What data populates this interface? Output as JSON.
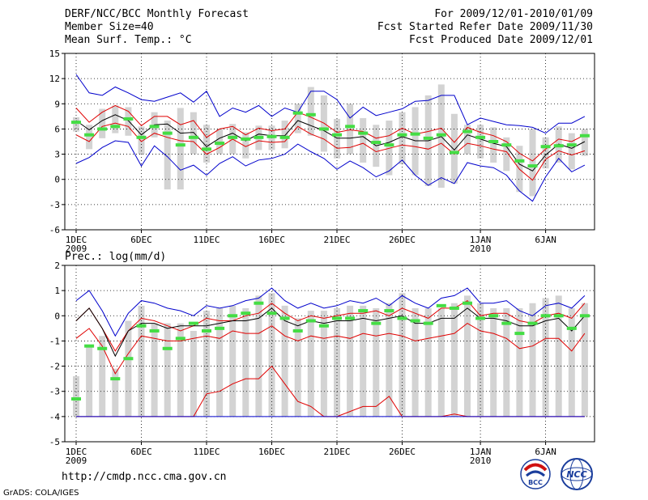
{
  "header": {
    "title": "DERF/NCC/BCC Monthly Forecast",
    "member_size": "Member Size=40",
    "variable": "Mean Surf. Temp.: °C",
    "forecast_period": "For 2009/12/01-2010/01/09",
    "start_refer_date": "Fcst Started Refer Date 2009/11/30",
    "produced_date": "Fcst Produced Date 2009/12/01"
  },
  "panel2_label": "Prec.: log(mm/d)",
  "footer": {
    "url": "http://cmdp.ncc.cma.gov.cn",
    "credit": "GrADS: COLA/IGES"
  },
  "logos": {
    "left": "BCC",
    "right": "NCC"
  },
  "colors": {
    "max_line": "#0000cc",
    "min_line": "#0000cc",
    "mean_line": "#000000",
    "spread_line": "#e00000",
    "observed_bar": "#44dd44",
    "box": "#d3d3d3"
  },
  "chart_data": [
    {
      "type": "line",
      "name": "temperature",
      "title": "Mean Surf. Temp.: °C",
      "xlabel": "",
      "ylabel": "°C",
      "ylim": [
        -6,
        15
      ],
      "yticks": [
        -6,
        -3,
        0,
        3,
        6,
        9,
        12,
        15
      ],
      "xtick_labels": [
        {
          "day": 1,
          "label": "1DEC",
          "sub": "2009"
        },
        {
          "day": 6,
          "label": "6DEC"
        },
        {
          "day": 11,
          "label": "11DEC"
        },
        {
          "day": 16,
          "label": "16DEC"
        },
        {
          "day": 21,
          "label": "21DEC"
        },
        {
          "day": 26,
          "label": "26DEC"
        },
        {
          "day": 32,
          "label": "1JAN",
          "sub": "2010"
        },
        {
          "day": 37,
          "label": "6JAN"
        }
      ],
      "grid": true,
      "days": [
        1,
        2,
        3,
        4,
        5,
        6,
        7,
        8,
        9,
        10,
        11,
        12,
        13,
        14,
        15,
        16,
        17,
        18,
        19,
        20,
        21,
        22,
        23,
        24,
        25,
        26,
        27,
        28,
        29,
        30,
        31,
        32,
        33,
        34,
        35,
        36,
        37,
        38,
        39,
        40
      ],
      "series": [
        {
          "name": "ensemble max",
          "color": "#0000cc",
          "values": [
            12.5,
            10.3,
            10,
            11,
            10.3,
            9.5,
            9.3,
            9.8,
            10.3,
            9.2,
            10.5,
            7.5,
            8.5,
            8,
            8.8,
            7.5,
            8.5,
            8,
            10.5,
            10.5,
            9.5,
            7.3,
            8.6,
            7.6,
            8,
            8.4,
            9.3,
            9.4,
            10,
            10,
            6.5,
            7.3,
            6.9,
            6.5,
            6.4,
            6.2,
            5.5,
            6.7,
            6.7,
            7.5
          ]
        },
        {
          "name": "upper spread",
          "color": "#e00000",
          "values": [
            8.5,
            6.8,
            8,
            8.8,
            8.1,
            6.4,
            7.5,
            7.5,
            6.5,
            7,
            5,
            6,
            6.3,
            5.3,
            6.1,
            5.8,
            6,
            8,
            7.4,
            6.7,
            5.6,
            5.9,
            5.7,
            4.9,
            5.2,
            6.1,
            5.4,
            5.7,
            6.1,
            4.4,
            6.2,
            5.6,
            5.2,
            4.5,
            3.1,
            2.2,
            3.6,
            4.8,
            4.5,
            5.3
          ]
        },
        {
          "name": "ensemble mean",
          "color": "#000000",
          "values": [
            7,
            5.9,
            7,
            7.7,
            7,
            5.3,
            6.5,
            6.6,
            5.5,
            5.6,
            3.9,
            4.9,
            5.5,
            4.6,
            5.4,
            5.2,
            5.2,
            7,
            6.4,
            5.8,
            4.9,
            4.9,
            5.1,
            4,
            4.4,
            5.1,
            4.6,
            4.6,
            5.1,
            3.5,
            5.3,
            4.8,
            4.3,
            3.9,
            1.8,
            1,
            2.9,
            4.2,
            3.7,
            4.5
          ]
        },
        {
          "name": "lower spread",
          "color": "#e00000",
          "values": [
            5.3,
            4.5,
            6.3,
            6.7,
            6.3,
            4.5,
            5.5,
            5,
            4.6,
            4.5,
            3,
            3.8,
            4.8,
            3.9,
            4.6,
            4.4,
            4.5,
            6.3,
            5.4,
            4.8,
            3.7,
            3.8,
            4.3,
            3.3,
            3.7,
            4.1,
            3.9,
            3.6,
            4.3,
            3,
            4.3,
            4,
            3.6,
            3.3,
            1.2,
            -0.1,
            2.4,
            3.4,
            2.9,
            3.4
          ]
        },
        {
          "name": "ensemble min",
          "color": "#0000cc",
          "values": [
            1.9,
            2.6,
            3.8,
            4.6,
            4.4,
            1.6,
            4,
            2.7,
            1.1,
            1.7,
            0.5,
            1.9,
            2.7,
            1.6,
            2.3,
            2.5,
            3,
            4.2,
            3.3,
            2.5,
            1.2,
            2.2,
            1.4,
            0.3,
            1,
            2.3,
            0.5,
            -0.7,
            0.2,
            -0.5,
            2,
            1.6,
            1.4,
            0.5,
            -1.4,
            -2.6,
            0.3,
            2.5,
            0.9,
            1.7
          ]
        }
      ],
      "observed": [
        6.8,
        5.3,
        6,
        6.3,
        7.2,
        5,
        6.3,
        5.5,
        4.1,
        5,
        3.6,
        4.3,
        5,
        4.8,
        5,
        5.1,
        5,
        7.9,
        7.7,
        6,
        5.3,
        6.3,
        5.5,
        4.4,
        4.1,
        5.3,
        5.4,
        4.9,
        5.3,
        3.2,
        5.7,
        5,
        4.5,
        4.1,
        2.2,
        1.6,
        3.9,
        4,
        4.1,
        5.2
      ],
      "boxes": [
        [
          5.7,
          7.4
        ],
        [
          3.6,
          6.5
        ],
        [
          4.9,
          8.4
        ],
        [
          5.5,
          8.8
        ],
        [
          5.2,
          8.6
        ],
        [
          3,
          6.3
        ],
        [
          5,
          8
        ],
        [
          -1.2,
          7
        ],
        [
          -1.2,
          8.5
        ],
        [
          3,
          8
        ],
        [
          2,
          6.5
        ],
        [
          3,
          6
        ],
        [
          3,
          6.6
        ],
        [
          2.5,
          5.6
        ],
        [
          3.5,
          6.4
        ],
        [
          3.5,
          6.4
        ],
        [
          3.7,
          7
        ],
        [
          5.5,
          9
        ],
        [
          5.2,
          11
        ],
        [
          3.3,
          10
        ],
        [
          2.5,
          7.2
        ],
        [
          3,
          9
        ],
        [
          2,
          7.3
        ],
        [
          1.5,
          6.5
        ],
        [
          0.5,
          7
        ],
        [
          1.8,
          8
        ],
        [
          0.5,
          8.6
        ],
        [
          -0.8,
          10
        ],
        [
          -1,
          11.3
        ],
        [
          -0.5,
          7.8
        ],
        [
          3,
          6.5
        ],
        [
          2.5,
          6.5
        ],
        [
          2,
          6.2
        ],
        [
          1,
          5
        ],
        [
          -1.5,
          4
        ],
        [
          -2,
          6
        ],
        [
          1.3,
          5
        ],
        [
          2,
          6.3
        ],
        [
          1.2,
          5.5
        ],
        [
          2.8,
          6
        ]
      ]
    },
    {
      "type": "line",
      "name": "precipitation",
      "title": "Prec.: log(mm/d)",
      "xlabel": "",
      "ylabel": "log(mm/d)",
      "ylim": [
        -5,
        2
      ],
      "yticks": [
        -5,
        -4,
        -3,
        -2,
        -1,
        0,
        1,
        2
      ],
      "xtick_labels": [
        {
          "day": 1,
          "label": "1DEC",
          "sub": "2009"
        },
        {
          "day": 6,
          "label": "6DEC"
        },
        {
          "day": 11,
          "label": "11DEC"
        },
        {
          "day": 16,
          "label": "16DEC"
        },
        {
          "day": 21,
          "label": "21DEC"
        },
        {
          "day": 26,
          "label": "26DEC"
        },
        {
          "day": 32,
          "label": "1JAN",
          "sub": "2010"
        },
        {
          "day": 37,
          "label": "6JAN"
        }
      ],
      "grid": true,
      "days": [
        1,
        2,
        3,
        4,
        5,
        6,
        7,
        8,
        9,
        10,
        11,
        12,
        13,
        14,
        15,
        16,
        17,
        18,
        19,
        20,
        21,
        22,
        23,
        24,
        25,
        26,
        27,
        28,
        29,
        30,
        31,
        32,
        33,
        34,
        35,
        36,
        37,
        38,
        39,
        40
      ],
      "series": [
        {
          "name": "ensemble max",
          "color": "#0000cc",
          "values": [
            0.6,
            1,
            0.2,
            -0.8,
            0.1,
            0.6,
            0.5,
            0.3,
            0.2,
            0,
            0.4,
            0.3,
            0.4,
            0.6,
            0.7,
            1.1,
            0.6,
            0.3,
            0.5,
            0.3,
            0.4,
            0.6,
            0.5,
            0.7,
            0.4,
            0.8,
            0.5,
            0.3,
            0.7,
            0.8,
            1.1,
            0.5,
            0.5,
            0.6,
            0.2,
            0,
            0.4,
            0.5,
            0.3,
            0.8
          ]
        },
        {
          "name": "upper spread",
          "color": "#e00000",
          "values": [
            -0.2,
            0.3,
            -0.5,
            -1.4,
            -0.6,
            -0.1,
            -0.2,
            -0.4,
            -0.6,
            -0.4,
            -0.1,
            -0.2,
            -0.2,
            0,
            0.1,
            0.5,
            0.1,
            -0.2,
            0,
            -0.1,
            0,
            0.1,
            0.1,
            0.2,
            0,
            0.3,
            0.1,
            -0.1,
            0.3,
            0.3,
            0.6,
            0,
            0.1,
            0.1,
            -0.2,
            -0.3,
            0,
            0.1,
            -0.1,
            0.5
          ]
        },
        {
          "name": "ensemble mean",
          "color": "#000000",
          "values": [
            -0.2,
            0.3,
            -0.5,
            -1.6,
            -0.6,
            -0.3,
            -0.3,
            -0.5,
            -0.4,
            -0.4,
            -0.4,
            -0.3,
            -0.2,
            -0.2,
            -0.1,
            0.3,
            -0.2,
            -0.4,
            -0.2,
            -0.3,
            -0.2,
            -0.2,
            -0.1,
            -0.2,
            -0.1,
            0,
            -0.3,
            -0.3,
            -0.1,
            -0.1,
            0.3,
            -0.1,
            -0.1,
            -0.2,
            -0.4,
            -0.4,
            -0.2,
            -0.1,
            -0.6,
            0
          ]
        },
        {
          "name": "lower spread",
          "color": "#e00000",
          "values": [
            -0.9,
            -0.5,
            -1.2,
            -2.3,
            -1.5,
            -0.8,
            -0.9,
            -1,
            -1,
            -0.9,
            -0.8,
            -0.9,
            -0.6,
            -0.7,
            -0.7,
            -0.4,
            -0.8,
            -1,
            -0.8,
            -0.9,
            -0.8,
            -0.9,
            -0.7,
            -0.8,
            -0.7,
            -0.8,
            -1,
            -0.9,
            -0.8,
            -0.7,
            -0.3,
            -0.6,
            -0.7,
            -0.9,
            -1.3,
            -1.2,
            -0.9,
            -0.9,
            -1.4,
            -0.7
          ]
        },
        {
          "name": "low member",
          "color": "#e00000",
          "values": [
            -4,
            -4,
            -4,
            -4,
            -4,
            -4,
            -4,
            -4,
            -4,
            -4,
            -3.1,
            -3,
            -2.7,
            -2.5,
            -2.5,
            -2,
            -2.7,
            -3.4,
            -3.6,
            -4,
            -4,
            -3.8,
            -3.6,
            -3.6,
            -3.2,
            -4,
            -4,
            -4,
            -4,
            -3.9,
            -4,
            -4,
            -4,
            -4,
            -4,
            -4,
            -4,
            -4,
            -4,
            -4
          ]
        },
        {
          "name": "ensemble min",
          "color": "#0000cc",
          "values": [
            -4,
            -4,
            -4,
            -4,
            -4,
            -4,
            -4,
            -4,
            -4,
            -4,
            -4,
            -4,
            -4,
            -4,
            -4,
            -4,
            -4,
            -4,
            -4,
            -4,
            -4,
            -4,
            -4,
            -4,
            -4,
            -4,
            -4,
            -4,
            -4,
            -4,
            -4,
            -4,
            -4,
            -4,
            -4,
            -4,
            -4,
            -4,
            -4,
            -4
          ]
        }
      ],
      "observed": [
        -3.3,
        -1.2,
        -1.3,
        -2.5,
        -1.7,
        -0.4,
        -0.6,
        -1.3,
        -0.9,
        -0.3,
        -0.6,
        -0.5,
        0,
        0.1,
        0.5,
        0.1,
        -0.1,
        -0.6,
        -0.2,
        -0.4,
        -0.1,
        -0.1,
        0.2,
        -0.3,
        0.2,
        -0.1,
        -0.2,
        -0.3,
        0.4,
        0.3,
        0.5,
        -0.1,
        0,
        -0.3,
        -0.7,
        -0.3,
        0,
        0,
        -0.5,
        0
      ],
      "boxes": [
        [
          -4,
          -2.4
        ],
        [
          -4,
          -1.2
        ],
        [
          -4,
          -0.8
        ],
        [
          -4,
          -2.1
        ],
        [
          -4,
          -0.2
        ],
        [
          -4,
          0.4
        ],
        [
          -4,
          -0.3
        ],
        [
          -4,
          -0.3
        ],
        [
          -4,
          -0.3
        ],
        [
          -4,
          -0.6
        ],
        [
          -4,
          0.2
        ],
        [
          -4,
          0.3
        ],
        [
          -4,
          0.4
        ],
        [
          -4,
          0.3
        ],
        [
          -4,
          0.8
        ],
        [
          -4,
          0.9
        ],
        [
          -4,
          0.4
        ],
        [
          -4,
          -0.1
        ],
        [
          -4,
          0.2
        ],
        [
          -4,
          0.2
        ],
        [
          -4,
          0.3
        ],
        [
          -4,
          0.4
        ],
        [
          -4,
          0.4
        ],
        [
          -4,
          0.3
        ],
        [
          -4,
          0.5
        ],
        [
          -4,
          0.9
        ],
        [
          -4,
          0.3
        ],
        [
          -4,
          0.3
        ],
        [
          -4,
          0.3
        ],
        [
          -4,
          0.5
        ],
        [
          -4,
          0.8
        ],
        [
          -4,
          0.5
        ],
        [
          -4,
          0.3
        ],
        [
          -4,
          0.3
        ],
        [
          -4,
          0.3
        ],
        [
          -4,
          0.5
        ],
        [
          -4,
          0.7
        ],
        [
          -4,
          0.8
        ],
        [
          -4,
          0.3
        ],
        [
          -4,
          0.5
        ]
      ]
    }
  ]
}
